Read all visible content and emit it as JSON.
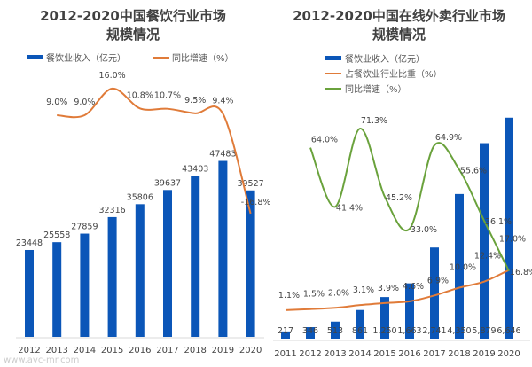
{
  "colors": {
    "bar": "#0b56b8",
    "orange": "#e07b39",
    "green": "#6aa23c",
    "axis": "#d9d9d9"
  },
  "watermark": "www.avc-mr.com",
  "chart_data": [
    {
      "type": "bar+line",
      "title_line1": "2012-2020中国餐饮行业市场",
      "title_line2": "规模情况",
      "legend_position": "top",
      "grid": false,
      "categories": [
        "2012",
        "2013",
        "2014",
        "2015",
        "2016",
        "2017",
        "2018",
        "2019",
        "2020"
      ],
      "series": [
        {
          "name": "餐饮业收入（亿元）",
          "type": "bar",
          "values": [
            23448,
            25558,
            27859,
            32316,
            35806,
            39637,
            43403,
            47483,
            39527
          ],
          "labels": [
            "23448",
            "25558",
            "27859",
            "32316",
            "35806",
            "39637",
            "43403",
            "47483",
            "39527"
          ]
        },
        {
          "name": "同比增速（%）",
          "type": "line",
          "values": [
            null,
            9.0,
            9.0,
            16.0,
            10.8,
            10.7,
            9.5,
            9.4,
            -16.8
          ],
          "labels": [
            "",
            "9.0%",
            "9.0%",
            "16.0%",
            "10.8%",
            "10.7%",
            "9.5%",
            "9.4%",
            "-16.8%"
          ]
        }
      ]
    },
    {
      "type": "bar+line",
      "title_line1": "2012-2020中国在线外卖行业市场",
      "title_line2": "规模情况",
      "legend_position": "top",
      "grid": false,
      "categories": [
        "2011",
        "2012",
        "2013",
        "2014",
        "2015",
        "2016",
        "2017",
        "2018",
        "2019",
        "2020"
      ],
      "series": [
        {
          "name": "餐饮业收入（亿元）",
          "type": "bar",
          "values": [
            217,
            346,
            513,
            861,
            1250,
            1663,
            2741,
            4350,
            5879,
            6646
          ],
          "labels": [
            "217",
            "346",
            "513",
            "861",
            "1,250",
            "1,663",
            "2,741",
            "4,350",
            "5,879",
            "6,646"
          ]
        },
        {
          "name": "占餐饮业行业比重（%）",
          "type": "line",
          "values": [
            1.1,
            1.5,
            2.0,
            3.1,
            3.9,
            4.6,
            6.9,
            10.0,
            12.4,
            17.0
          ],
          "labels": [
            "1.1%",
            "1.5%",
            "2.0%",
            "3.1%",
            "3.9%",
            "4.6%",
            "6.9%",
            "10.0%",
            "12.4%",
            "17.0%"
          ]
        },
        {
          "name": "同比增速（%）",
          "type": "line",
          "values": [
            null,
            64.0,
            41.4,
            71.3,
            45.2,
            33.0,
            64.9,
            55.6,
            36.1,
            16.8
          ],
          "labels": [
            "",
            "64.0%",
            "41.4%",
            "71.3%",
            "45.2%",
            "33.0%",
            "64.9%",
            "55.6%",
            "36.1%",
            "16.8%"
          ]
        }
      ]
    }
  ]
}
